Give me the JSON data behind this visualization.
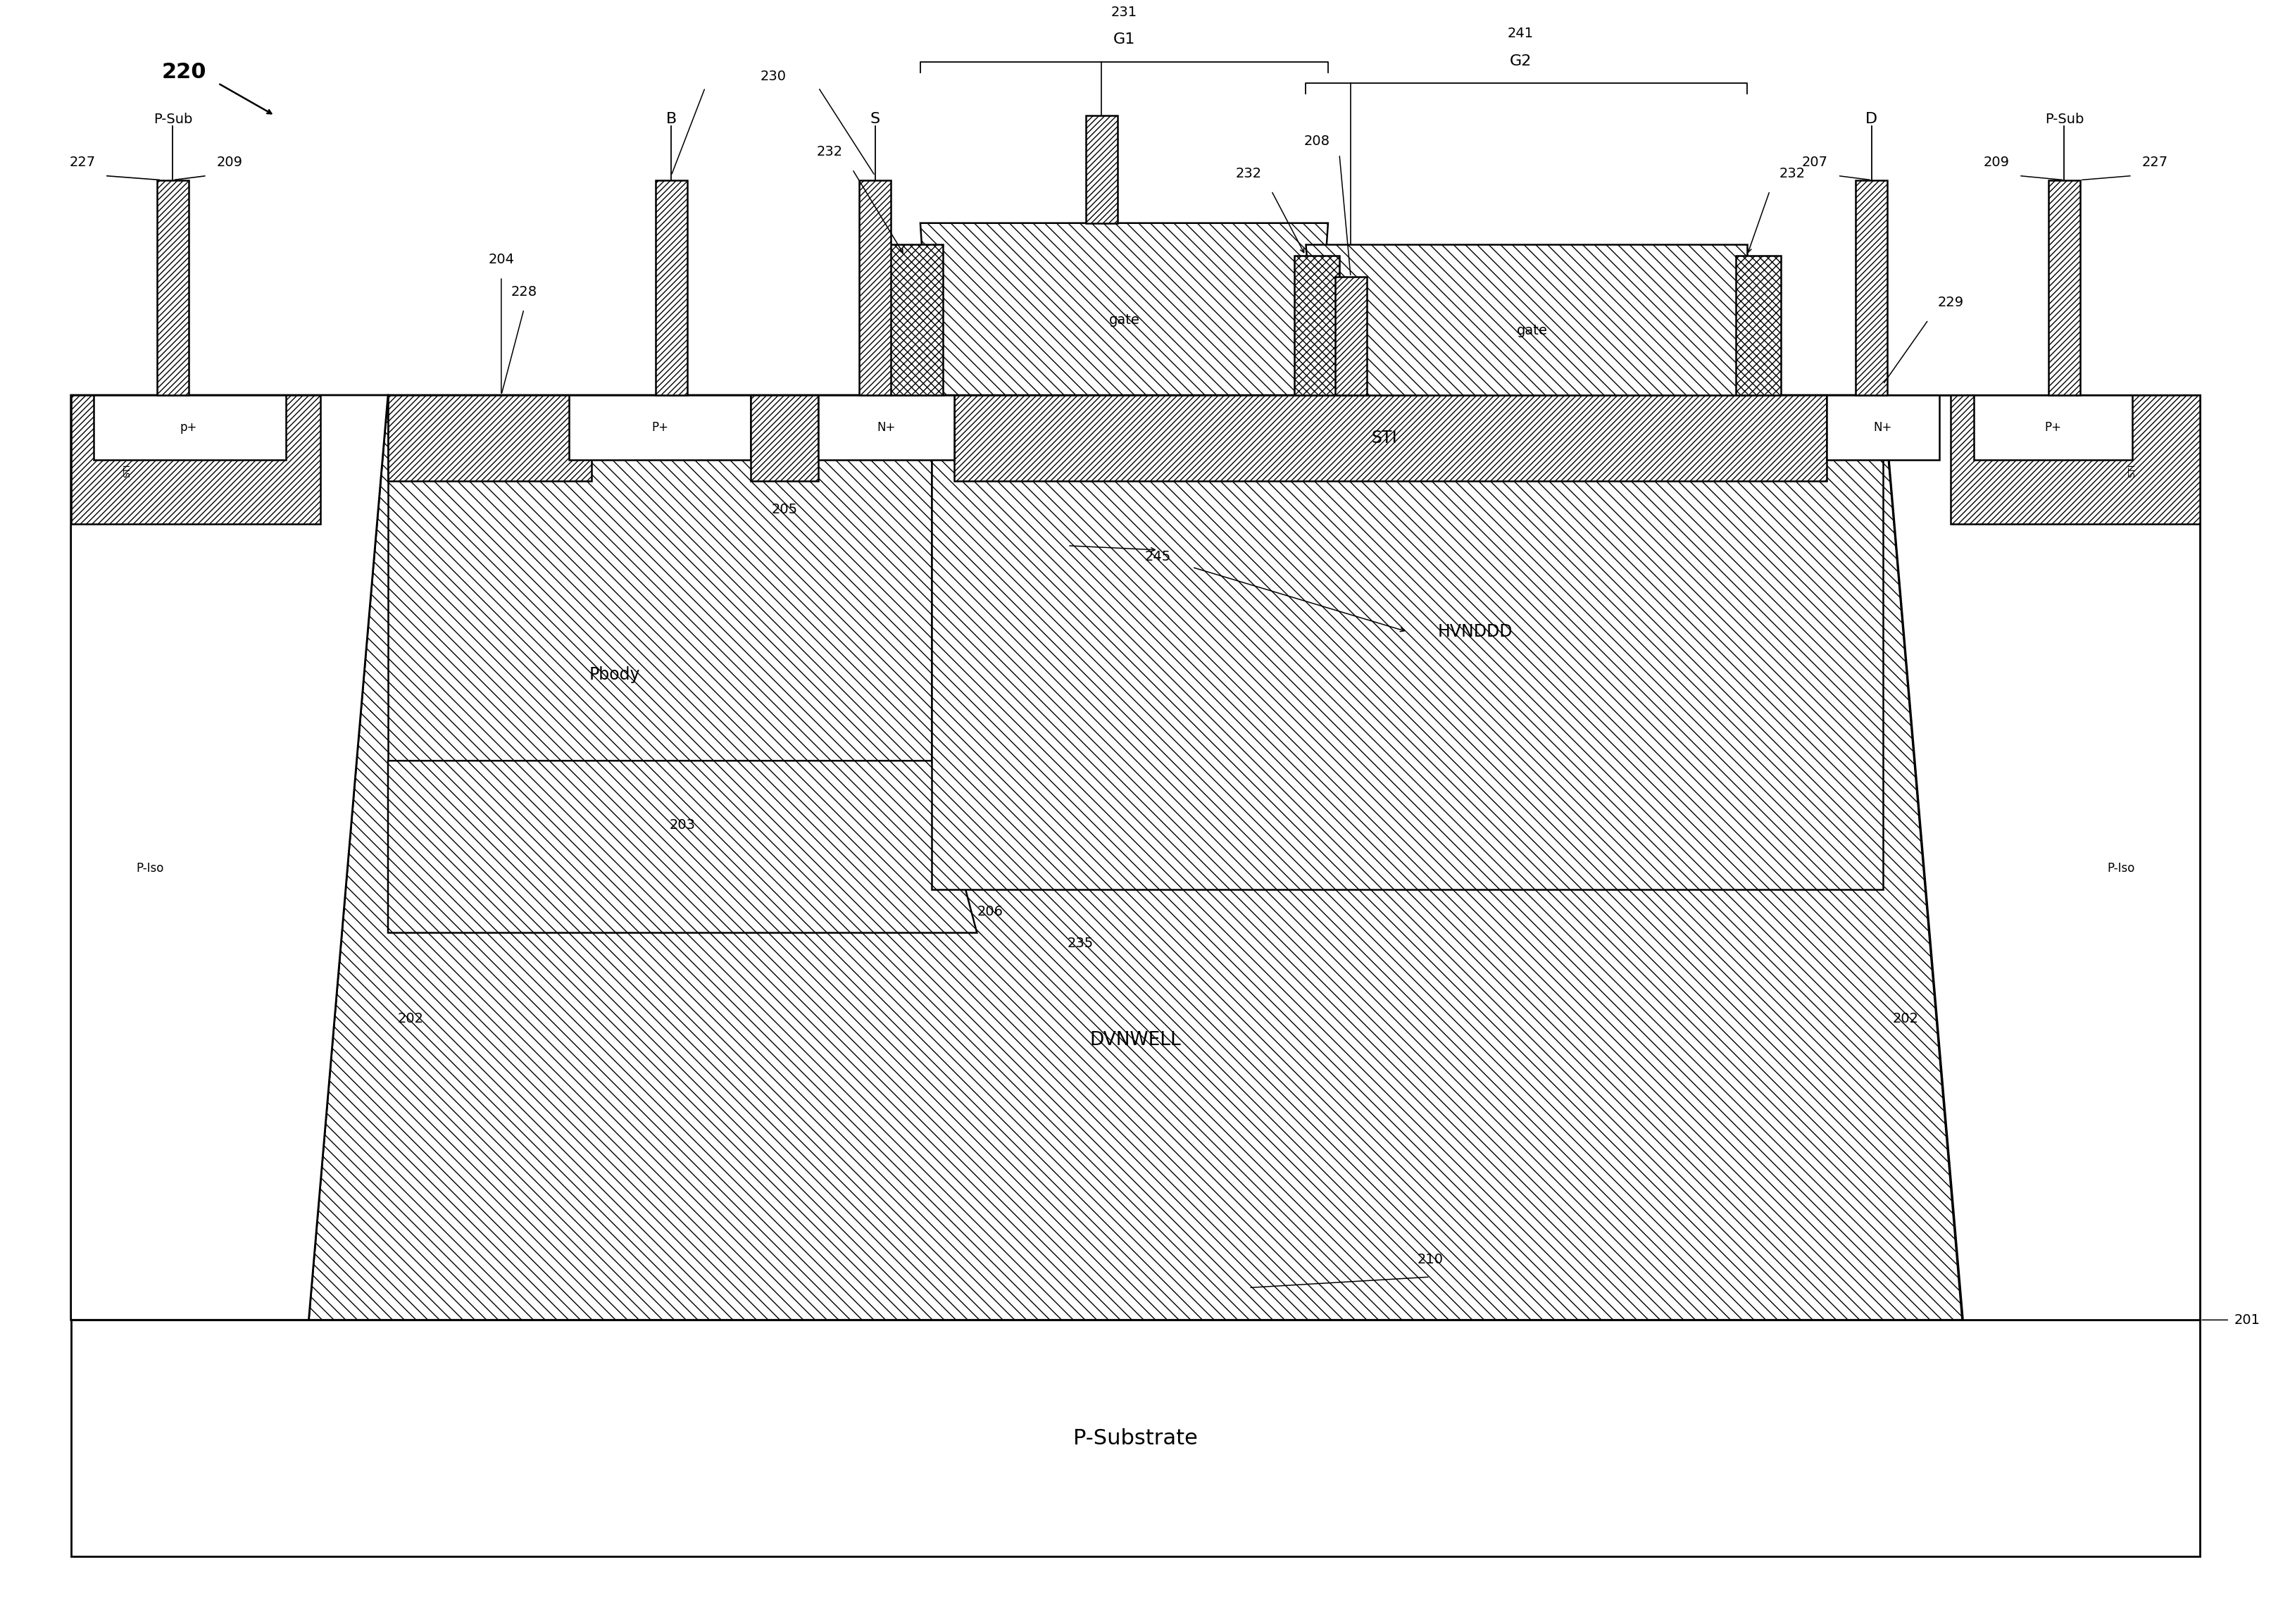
{
  "bg_color": "#ffffff",
  "line_color": "#000000",
  "fig_width": 32.25,
  "fig_height": 23.06,
  "xlim": [
    0,
    100
  ],
  "ylim": [
    0,
    75
  ],
  "labels": {
    "diagram_ref": "220",
    "p_substrate": "P-Substrate",
    "dvnwell": "DVNWELL",
    "pbody": "Pbody",
    "hvnddd": "HVNDDD",
    "sti": "STI",
    "p_iso": "P-Iso",
    "gate": "gate",
    "g1": "G1",
    "g2": "G2",
    "b_contact": "B",
    "s_contact": "S",
    "d_contact": "D",
    "p_sub_contact": "P-Sub",
    "pp": "P+",
    "np": "N+",
    "pp_small": "p+"
  },
  "refs": {
    "r201": "201",
    "r202": "202",
    "r203": "203",
    "r204": "204",
    "r205": "205",
    "r206": "206",
    "r207": "207",
    "r208": "208",
    "r209": "209",
    "r210": "210",
    "r227": "227",
    "r228": "228",
    "r229": "229",
    "r230": "230",
    "r231": "231",
    "r232": "232",
    "r235": "235",
    "r241": "241",
    "r245": "245"
  },
  "font_sizes": {
    "large": 22,
    "medium": 17,
    "small": 14,
    "tiny": 12,
    "ref": 16,
    "label": 19
  }
}
